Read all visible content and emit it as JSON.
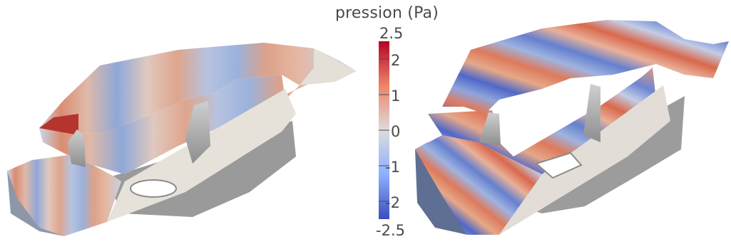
{
  "colorbar": {
    "title": "pression  (Pa)",
    "min_label": "-2.5",
    "max_label": "2.5",
    "ticks": [
      "2",
      "1",
      "0",
      "-1",
      "-2"
    ],
    "colors": {
      "high": "#b40426",
      "mid": "#dddcdc",
      "low": "#3b4cc0"
    }
  }
}
